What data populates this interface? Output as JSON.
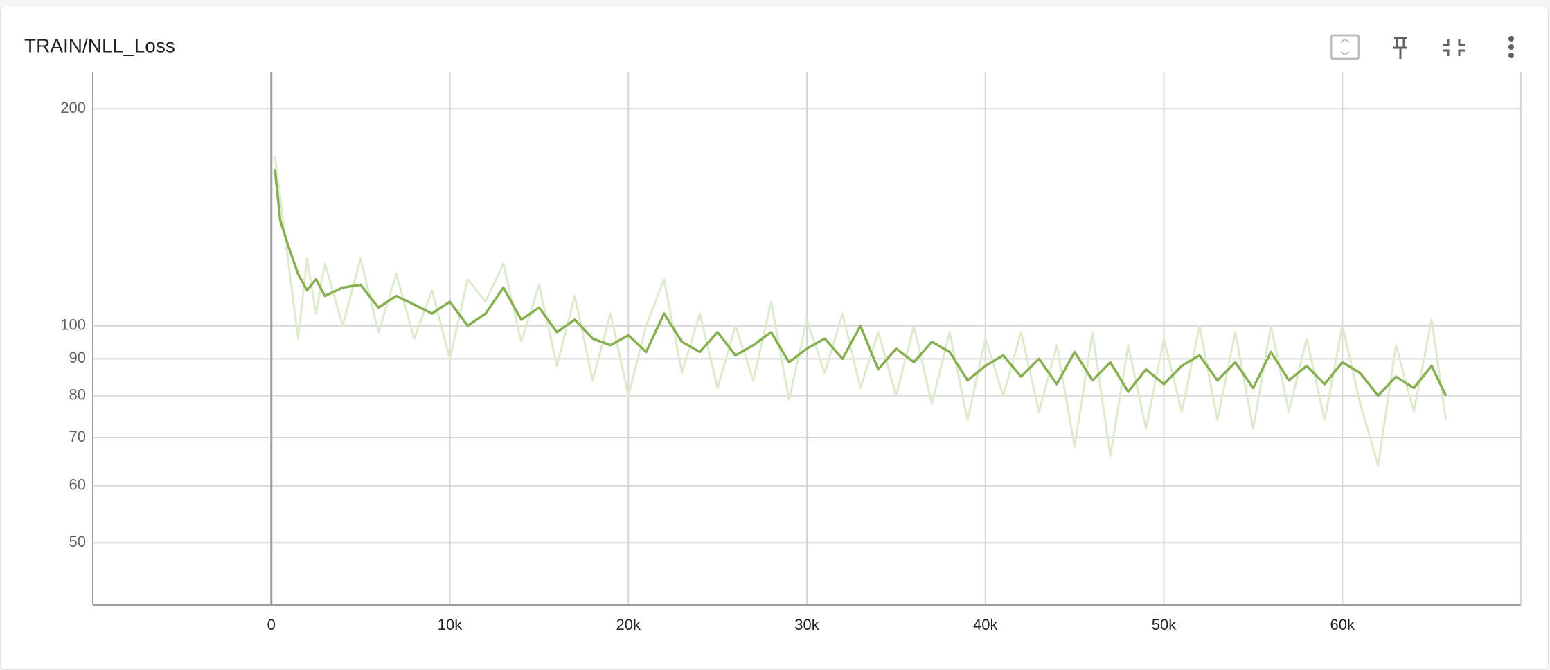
{
  "chart_data": {
    "type": "line",
    "title": "TRAIN/NLL_Loss",
    "x": [
      200,
      500,
      1000,
      1500,
      2000,
      2500,
      3000,
      4000,
      5000,
      6000,
      7000,
      8000,
      9000,
      10000,
      11000,
      12000,
      13000,
      14000,
      15000,
      16000,
      17000,
      18000,
      19000,
      20000,
      21000,
      22000,
      23000,
      24000,
      25000,
      26000,
      27000,
      28000,
      29000,
      30000,
      31000,
      32000,
      33000,
      34000,
      35000,
      36000,
      37000,
      38000,
      39000,
      40000,
      41000,
      42000,
      43000,
      44000,
      45000,
      46000,
      47000,
      48000,
      49000,
      50000,
      51000,
      52000,
      53000,
      54000,
      55000,
      56000,
      57000,
      58000,
      59000,
      60000,
      61000,
      62000,
      63000,
      64000,
      65000,
      65800
    ],
    "series": [
      {
        "color": "#dcebcb",
        "values": [
          172,
          150,
          120,
          96,
          124,
          104,
          122,
          100,
          124,
          98,
          118,
          96,
          112,
          90,
          116,
          108,
          122,
          95,
          114,
          88,
          110,
          84,
          104,
          80,
          100,
          116,
          86,
          104,
          82,
          100,
          84,
          108,
          79,
          102,
          86,
          104,
          82,
          98,
          80,
          100,
          78,
          98,
          74,
          96,
          80,
          98,
          76,
          94,
          68,
          98,
          66,
          94,
          72,
          96,
          76,
          100,
          74,
          98,
          72,
          100,
          76,
          96,
          74,
          100,
          78,
          64,
          94,
          76,
          102,
          74
        ]
      },
      {
        "color": "#86b04f",
        "values": [
          165,
          140,
          128,
          118,
          112,
          116,
          110,
          113,
          114,
          106,
          110,
          107,
          104,
          108,
          100,
          104,
          113,
          102,
          106,
          98,
          102,
          96,
          94,
          97,
          92,
          104,
          95,
          92,
          98,
          91,
          94,
          98,
          89,
          93,
          96,
          90,
          100,
          87,
          93,
          89,
          95,
          92,
          84,
          88,
          91,
          85,
          90,
          83,
          92,
          84,
          89,
          81,
          87,
          83,
          88,
          91,
          84,
          89,
          82,
          92,
          84,
          88,
          83,
          89,
          86,
          80,
          85,
          82,
          88,
          80
        ]
      }
    ],
    "xlim": [
      -10000,
      70000
    ],
    "xticks": [
      {
        "value": 0,
        "label": "0"
      },
      {
        "value": 10000,
        "label": "10k"
      },
      {
        "value": 20000,
        "label": "20k"
      },
      {
        "value": 30000,
        "label": "30k"
      },
      {
        "value": 40000,
        "label": "40k"
      },
      {
        "value": 50000,
        "label": "50k"
      },
      {
        "value": 60000,
        "label": "60k"
      }
    ],
    "ylim": [
      41,
      223
    ],
    "yticks": [
      50,
      60,
      70,
      80,
      90,
      100,
      200
    ],
    "log_y": true,
    "grid": true
  }
}
